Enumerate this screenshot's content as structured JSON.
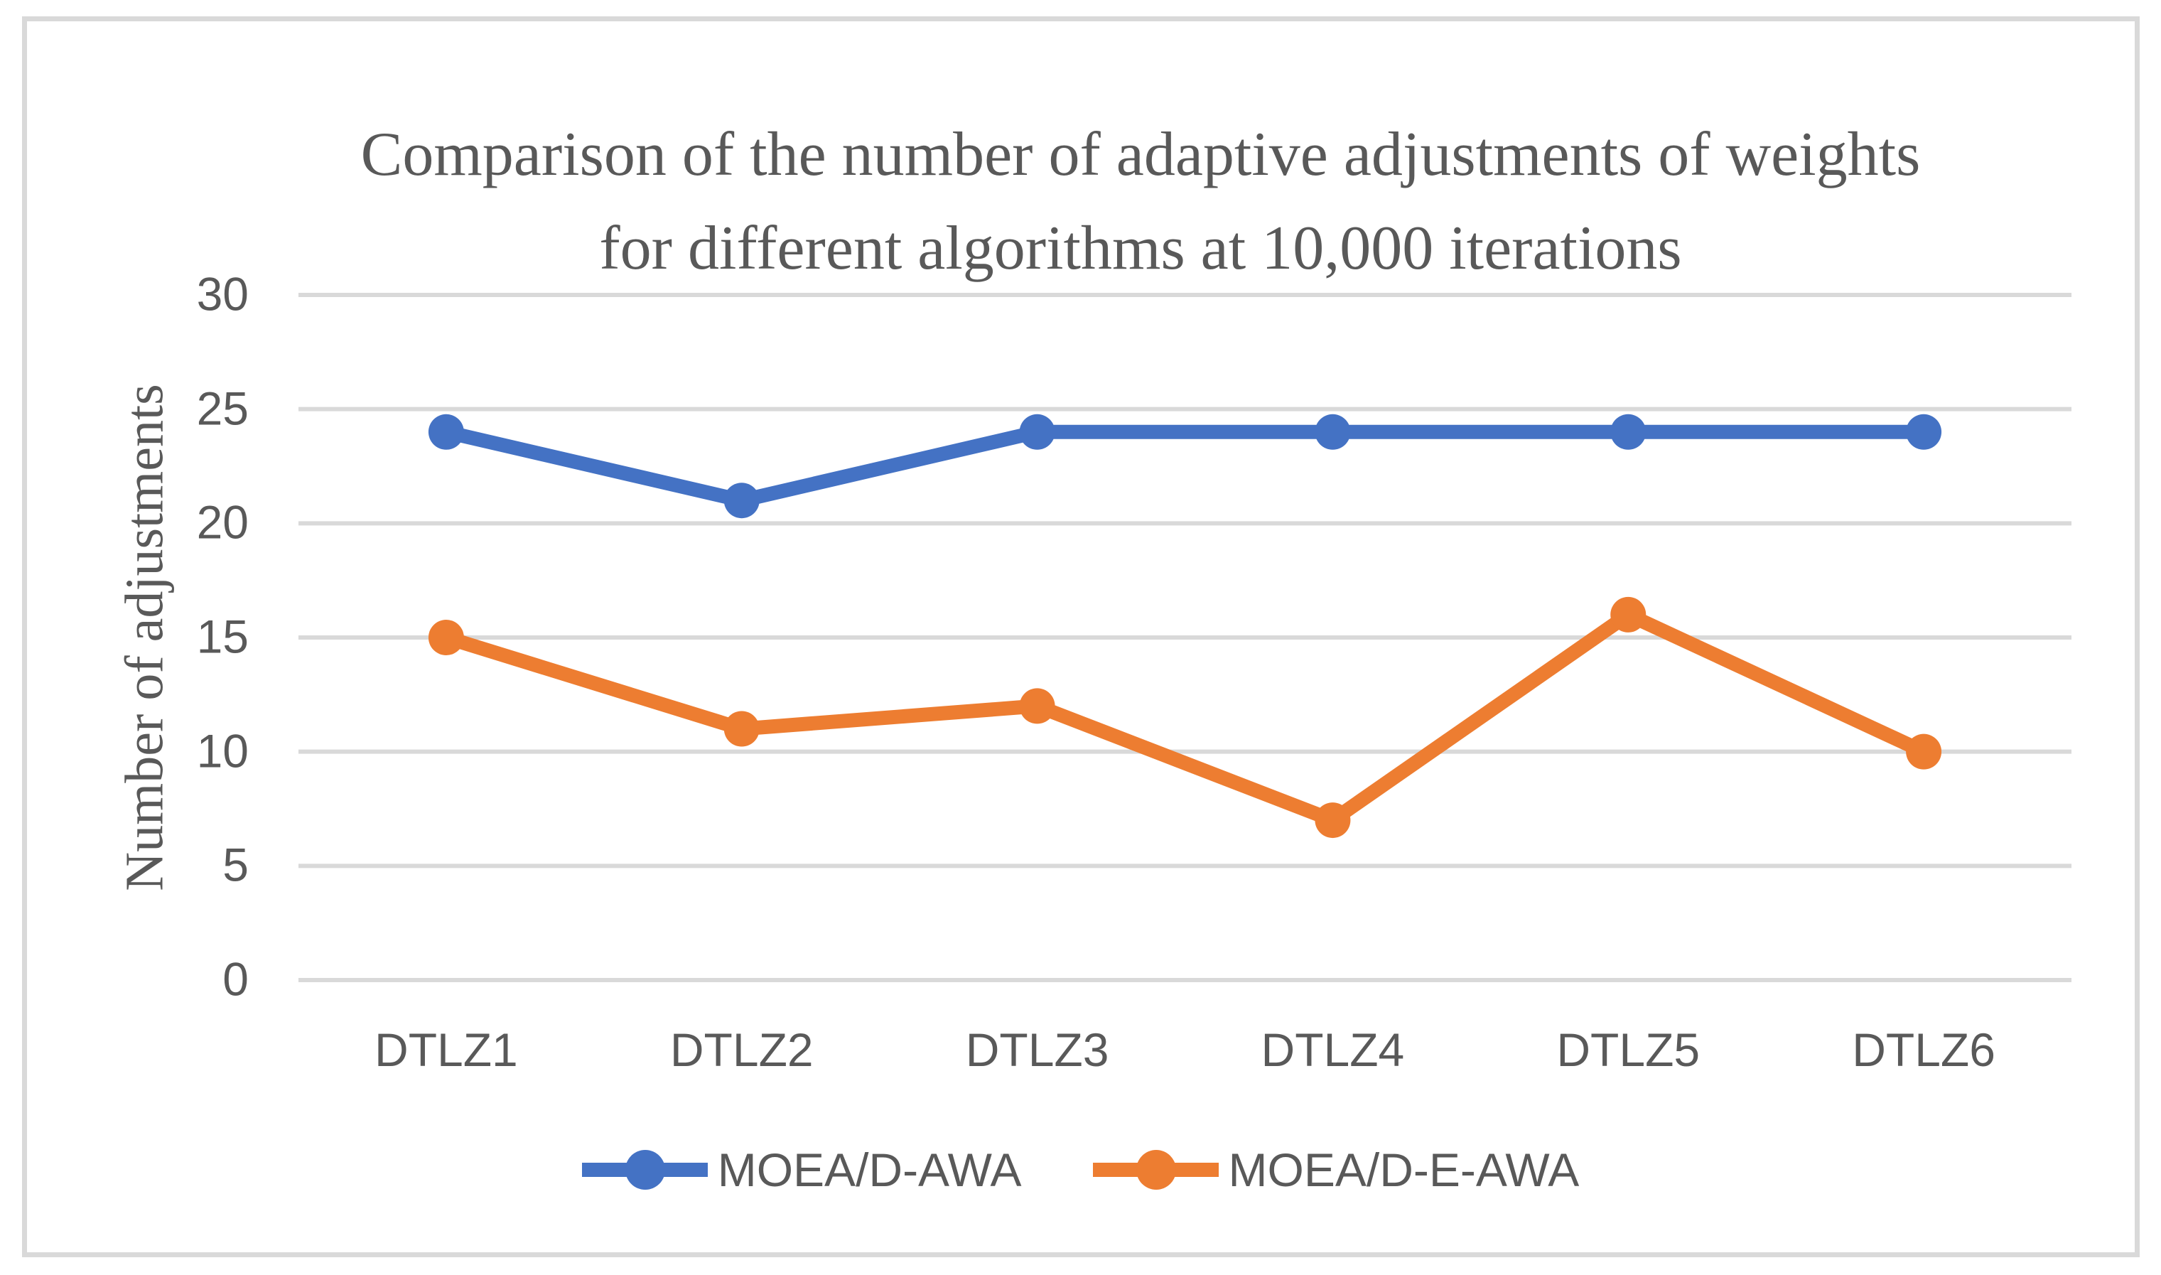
{
  "chart_data": {
    "type": "line",
    "title": "Comparison of the number of adaptive adjustments of weights for different algorithms at 10,000 iterations",
    "title_lines": [
      "Comparison of the number of adaptive adjustments of weights",
      "for different algorithms at 10,000 iterations"
    ],
    "xlabel": "",
    "ylabel": "Number of adjustments",
    "categories": [
      "DTLZ1",
      "DTLZ2",
      "DTLZ3",
      "DTLZ4",
      "DTLZ5",
      "DTLZ6"
    ],
    "series": [
      {
        "name": "MOEA/D-AWA",
        "color": "#4472C4",
        "values": [
          24,
          21,
          24,
          24,
          24,
          24
        ]
      },
      {
        "name": "MOEA/D-E-AWA",
        "color": "#ED7D31",
        "values": [
          15,
          11,
          12,
          7,
          16,
          10
        ]
      }
    ],
    "ylim": [
      0,
      30
    ],
    "yticks": [
      0,
      5,
      10,
      15,
      20,
      25,
      30
    ],
    "grid": true,
    "legend_position": "bottom",
    "colors": {
      "text": "#595959",
      "gridline": "#D9D9D9",
      "frame_border": "#D9D9D9",
      "background": "#FFFFFF"
    }
  }
}
